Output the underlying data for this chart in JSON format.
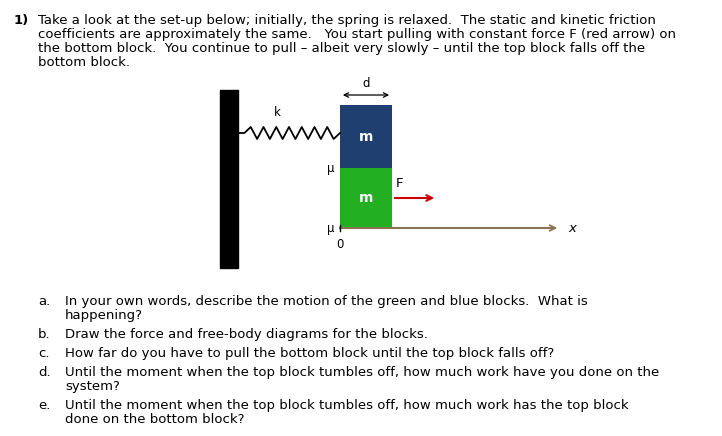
{
  "title_num": "1)",
  "title_line1": "Take a look at the set-up below; initially, the spring is relaxed.  The static and kinetic friction",
  "title_line2": "coefficients are approximately the same.   You start pulling with constant force F (red arrow) on",
  "title_line3": "the bottom block.  You continue to pull – albeit very slowly – until the top block falls off the",
  "title_line4": "bottom block.",
  "blue_color": "#1e3f6f",
  "green_color": "#22b022",
  "wall_color": "#000000",
  "bg_color": "#ffffff",
  "text_color": "#000000",
  "red_color": "#cc0000",
  "ground_color": "#8B7355",
  "fontsize_main": 9.5,
  "fontsize_block_m": 10,
  "fontsize_label": 8.5,
  "fontsize_question": 9.5,
  "questions_a": "In your own words, describe the motion of the green and blue blocks.  What is",
  "questions_a2": "happening?",
  "questions_b": "Draw the force and free-body diagrams for the blocks.",
  "questions_c": "How far do you have to pull the bottom block until the top block falls off?",
  "questions_d": "Until the moment when the top block tumbles off, how much work have you done on the",
  "questions_d2": "system?",
  "questions_e": "Until the moment when the top block tumbles off, how much work has the top block",
  "questions_e2": "done on the bottom block?"
}
